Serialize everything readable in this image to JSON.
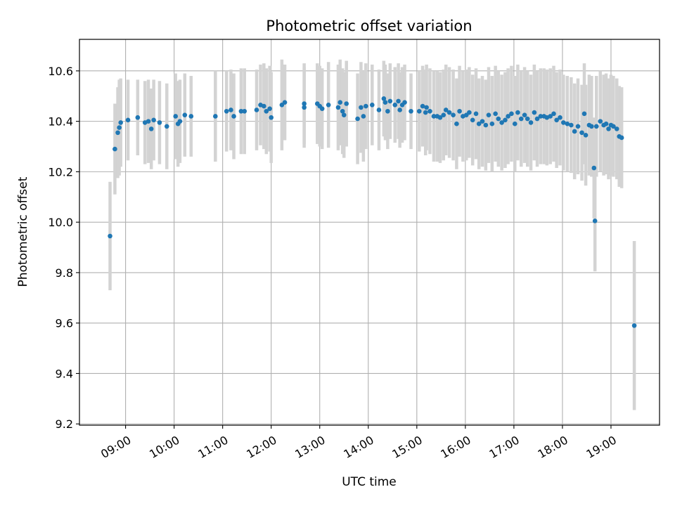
{
  "chart_data": {
    "type": "scatter",
    "title": "Photometric offset variation",
    "xlabel": "UTC time",
    "ylabel": "Photometric offset",
    "x_unit": "hours (UTC)",
    "xlim": [
      8.05,
      20.0
    ],
    "ylim": [
      9.195,
      10.725
    ],
    "grid": true,
    "colors": {
      "point": "#1f77b4",
      "errorbar": "#d3d3d3",
      "grid": "#b0b0b0"
    },
    "x_ticks": [
      {
        "value": 9,
        "label": "09:00"
      },
      {
        "value": 10,
        "label": "10:00"
      },
      {
        "value": 11,
        "label": "11:00"
      },
      {
        "value": 12,
        "label": "12:00"
      },
      {
        "value": 13,
        "label": "13:00"
      },
      {
        "value": 14,
        "label": "14:00"
      },
      {
        "value": 15,
        "label": "15:00"
      },
      {
        "value": 16,
        "label": "16:00"
      },
      {
        "value": 17,
        "label": "17:00"
      },
      {
        "value": 18,
        "label": "18:00"
      },
      {
        "value": 19,
        "label": "19:00"
      }
    ],
    "y_ticks": [
      {
        "value": 9.2,
        "label": "9.2"
      },
      {
        "value": 9.4,
        "label": "9.4"
      },
      {
        "value": 9.6,
        "label": "9.6"
      },
      {
        "value": 9.8,
        "label": "9.8"
      },
      {
        "value": 10.0,
        "label": "10.0"
      },
      {
        "value": 10.2,
        "label": "10.2"
      },
      {
        "value": 10.4,
        "label": "10.4"
      },
      {
        "value": 10.6,
        "label": "10.6"
      }
    ],
    "series": [
      {
        "points": [
          [
            8.68,
            9.945,
            0.215
          ],
          [
            8.78,
            10.29,
            0.18
          ],
          [
            8.84,
            10.355,
            0.18
          ],
          [
            8.87,
            10.375,
            0.19
          ],
          [
            8.9,
            10.395,
            0.175
          ],
          [
            9.05,
            10.405,
            0.16
          ],
          [
            9.25,
            10.415,
            0.15
          ],
          [
            9.4,
            10.395,
            0.165
          ],
          [
            9.47,
            10.4,
            0.165
          ],
          [
            9.53,
            10.37,
            0.16
          ],
          [
            9.58,
            10.405,
            0.16
          ],
          [
            9.7,
            10.395,
            0.165
          ],
          [
            9.85,
            10.38,
            0.17
          ],
          [
            10.03,
            10.42,
            0.17
          ],
          [
            10.08,
            10.39,
            0.17
          ],
          [
            10.12,
            10.4,
            0.165
          ],
          [
            10.22,
            10.425,
            0.165
          ],
          [
            10.35,
            10.42,
            0.16
          ],
          [
            10.85,
            10.42,
            0.18
          ],
          [
            11.08,
            10.44,
            0.16
          ],
          [
            11.17,
            10.445,
            0.16
          ],
          [
            11.23,
            10.42,
            0.17
          ],
          [
            11.38,
            10.44,
            0.17
          ],
          [
            11.45,
            10.44,
            0.17
          ],
          [
            11.7,
            10.445,
            0.16
          ],
          [
            11.78,
            10.465,
            0.16
          ],
          [
            11.85,
            10.46,
            0.17
          ],
          [
            11.9,
            10.44,
            0.17
          ],
          [
            11.97,
            10.45,
            0.17
          ],
          [
            12.0,
            10.415,
            0.18
          ],
          [
            12.22,
            10.465,
            0.18
          ],
          [
            12.28,
            10.475,
            0.15
          ],
          [
            12.68,
            10.47,
            0.16
          ],
          [
            12.68,
            10.455,
            0.16
          ],
          [
            12.95,
            10.47,
            0.16
          ],
          [
            13.0,
            10.46,
            0.16
          ],
          [
            13.05,
            10.45,
            0.16
          ],
          [
            13.18,
            10.465,
            0.17
          ],
          [
            13.38,
            10.455,
            0.17
          ],
          [
            13.42,
            10.475,
            0.17
          ],
          [
            13.47,
            10.44,
            0.17
          ],
          [
            13.5,
            10.425,
            0.17
          ],
          [
            13.55,
            10.47,
            0.17
          ],
          [
            13.78,
            10.41,
            0.18
          ],
          [
            13.85,
            10.455,
            0.18
          ],
          [
            13.9,
            10.42,
            0.18
          ],
          [
            13.95,
            10.46,
            0.17
          ],
          [
            14.08,
            10.465,
            0.16
          ],
          [
            14.22,
            10.445,
            0.16
          ],
          [
            14.32,
            10.49,
            0.15
          ],
          [
            14.35,
            10.475,
            0.15
          ],
          [
            14.4,
            10.44,
            0.15
          ],
          [
            14.45,
            10.48,
            0.15
          ],
          [
            14.55,
            10.465,
            0.15
          ],
          [
            14.62,
            10.48,
            0.15
          ],
          [
            14.65,
            10.445,
            0.15
          ],
          [
            14.7,
            10.465,
            0.15
          ],
          [
            14.75,
            10.475,
            0.15
          ],
          [
            14.88,
            10.44,
            0.15
          ],
          [
            15.05,
            10.44,
            0.16
          ],
          [
            15.12,
            10.46,
            0.16
          ],
          [
            15.18,
            10.435,
            0.17
          ],
          [
            15.2,
            10.455,
            0.17
          ],
          [
            15.27,
            10.44,
            0.17
          ],
          [
            15.35,
            10.42,
            0.18
          ],
          [
            15.42,
            10.42,
            0.18
          ],
          [
            15.48,
            10.415,
            0.18
          ],
          [
            15.55,
            10.425,
            0.18
          ],
          [
            15.6,
            10.445,
            0.18
          ],
          [
            15.67,
            10.435,
            0.18
          ],
          [
            15.75,
            10.425,
            0.18
          ],
          [
            15.82,
            10.39,
            0.18
          ],
          [
            15.88,
            10.44,
            0.18
          ],
          [
            15.95,
            10.42,
            0.18
          ],
          [
            16.02,
            10.425,
            0.18
          ],
          [
            16.08,
            10.435,
            0.18
          ],
          [
            16.15,
            10.405,
            0.18
          ],
          [
            16.22,
            10.43,
            0.18
          ],
          [
            16.28,
            10.39,
            0.18
          ],
          [
            16.35,
            10.4,
            0.18
          ],
          [
            16.42,
            10.385,
            0.18
          ],
          [
            16.48,
            10.425,
            0.19
          ],
          [
            16.55,
            10.39,
            0.19
          ],
          [
            16.62,
            10.43,
            0.19
          ],
          [
            16.68,
            10.41,
            0.19
          ],
          [
            16.75,
            10.395,
            0.19
          ],
          [
            16.82,
            10.405,
            0.19
          ],
          [
            16.88,
            10.42,
            0.19
          ],
          [
            16.95,
            10.43,
            0.19
          ],
          [
            17.02,
            10.39,
            0.19
          ],
          [
            17.08,
            10.435,
            0.19
          ],
          [
            17.15,
            10.41,
            0.19
          ],
          [
            17.22,
            10.425,
            0.19
          ],
          [
            17.28,
            10.41,
            0.19
          ],
          [
            17.35,
            10.395,
            0.19
          ],
          [
            17.42,
            10.435,
            0.19
          ],
          [
            17.48,
            10.41,
            0.19
          ],
          [
            17.55,
            10.42,
            0.19
          ],
          [
            17.62,
            10.42,
            0.19
          ],
          [
            17.68,
            10.415,
            0.19
          ],
          [
            17.75,
            10.42,
            0.19
          ],
          [
            17.82,
            10.43,
            0.19
          ],
          [
            17.88,
            10.405,
            0.19
          ],
          [
            17.95,
            10.415,
            0.19
          ],
          [
            18.02,
            10.395,
            0.19
          ],
          [
            18.1,
            10.39,
            0.19
          ],
          [
            18.18,
            10.385,
            0.19
          ],
          [
            18.25,
            10.36,
            0.19
          ],
          [
            18.32,
            10.38,
            0.19
          ],
          [
            18.4,
            10.355,
            0.19
          ],
          [
            18.45,
            10.43,
            0.2
          ],
          [
            18.48,
            10.345,
            0.2
          ],
          [
            18.55,
            10.385,
            0.2
          ],
          [
            18.6,
            10.38,
            0.2
          ],
          [
            18.65,
            10.215,
            0.2
          ],
          [
            18.67,
            10.005,
            0.2
          ],
          [
            18.7,
            10.38,
            0.2
          ],
          [
            18.78,
            10.4,
            0.2
          ],
          [
            18.85,
            10.385,
            0.2
          ],
          [
            18.9,
            10.39,
            0.2
          ],
          [
            18.95,
            10.37,
            0.2
          ],
          [
            19.0,
            10.385,
            0.2
          ],
          [
            19.05,
            10.38,
            0.2
          ],
          [
            19.12,
            10.37,
            0.2
          ],
          [
            19.17,
            10.34,
            0.2
          ],
          [
            19.22,
            10.335,
            0.2
          ],
          [
            19.48,
            9.59,
            0.335
          ]
        ]
      }
    ]
  }
}
